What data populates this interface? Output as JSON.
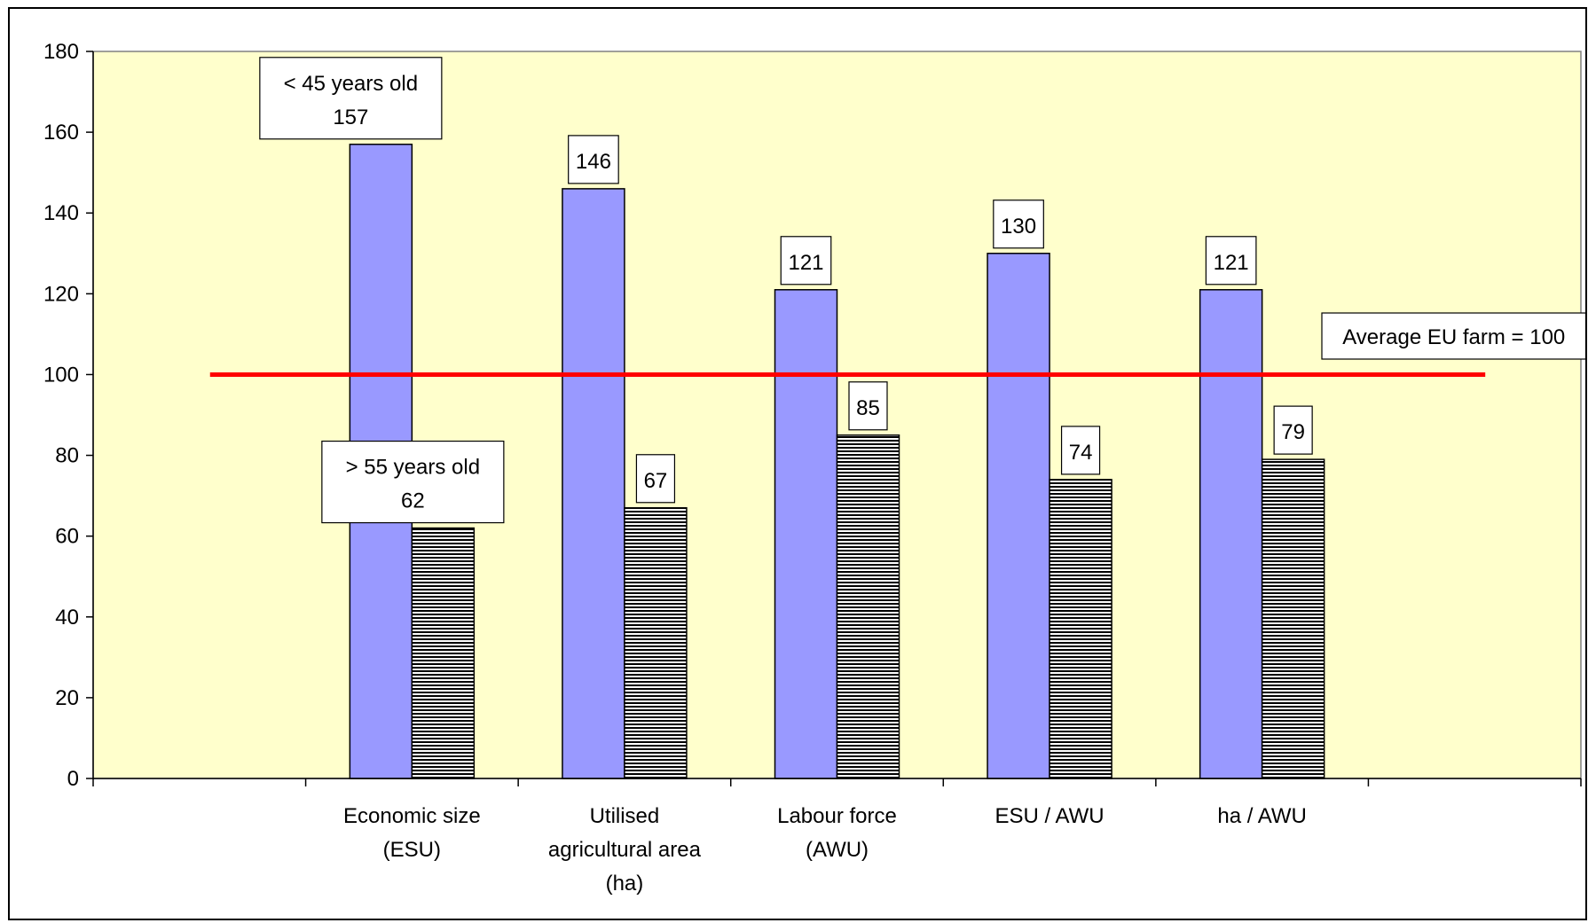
{
  "chart_data": {
    "type": "bar",
    "categories": [
      [
        "Economic size",
        "(ESU)"
      ],
      [
        "Utilised",
        "agricultural area",
        "(ha)"
      ],
      [
        "Labour force",
        "(AWU)"
      ],
      [
        "ESU / AWU"
      ],
      [
        "ha / AWU"
      ]
    ],
    "series": [
      {
        "name": "< 45 years old",
        "values": [
          157,
          146,
          121,
          130,
          121
        ],
        "color": "#9999FF",
        "fill": "solid"
      },
      {
        "name": "> 55 years old",
        "values": [
          62,
          67,
          85,
          74,
          79
        ],
        "color": "#000000",
        "fill": "horizontal-stripes"
      }
    ],
    "data_labels": {
      "young": [
        "< 45 years old\n157",
        "146",
        "121",
        "130",
        "121"
      ],
      "old": [
        "> 55 years old\n62",
        "67",
        "85",
        "74",
        "79"
      ]
    },
    "reference_line": {
      "value": 100,
      "label": "Average EU farm = 100",
      "color": "#FF0000"
    },
    "ylim": [
      0,
      180
    ],
    "yticks": [
      0,
      20,
      40,
      60,
      80,
      100,
      120,
      140,
      160,
      180
    ],
    "plot_background": "#FFFFCC",
    "title": "",
    "xlabel": "",
    "ylabel": ""
  }
}
